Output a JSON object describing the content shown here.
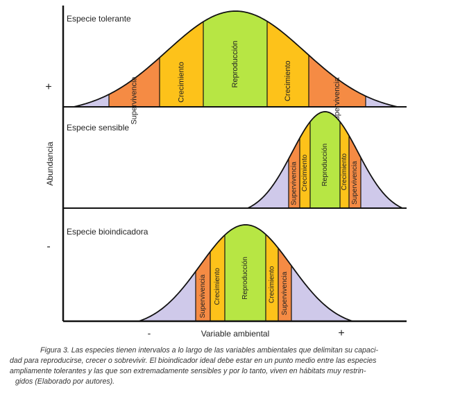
{
  "axes": {
    "y_label": "Abundancia",
    "y_plus": "+",
    "y_minus": "-",
    "x_label": "Variable ambiental",
    "x_minus": "-",
    "x_plus": "+"
  },
  "band_colors": {
    "outer": "#cfc9ea",
    "supervivencia": "#f58b44",
    "crecimiento": "#fdc21a",
    "reproduccion": "#b7e644"
  },
  "panels": [
    {
      "title": "Especie tolerante",
      "bands": [
        "Supervivencia",
        "Crecimiento",
        "Reproducción",
        "Crecimiento",
        "Supervivencia"
      ]
    },
    {
      "title": "Especie sensible",
      "bands": [
        "Supervivencia",
        "Crecimiento",
        "Reproducción",
        "Crecimiento",
        "Supervivencia"
      ]
    },
    {
      "title": "Especie bioindicadora",
      "bands": [
        "Supervivencia",
        "Crecimiento",
        "Reproducción",
        "Crecimiento",
        "Supervivencia"
      ]
    }
  ],
  "caption": {
    "line1": "Figura 3. Las especies tienen intervalos a lo largo de las variables ambientales que delimitan su capaci-",
    "line2": "dad para reproducirse, crecer o sobrevivir. El bioindicador ideal debe estar en un punto medio entre las especies",
    "line3": "ampliamente tolerantes y las que son extremadamente sensibles y por lo tanto, viven en hábitats muy restrin-",
    "line4": "gidos (Elaborado por autores)."
  }
}
